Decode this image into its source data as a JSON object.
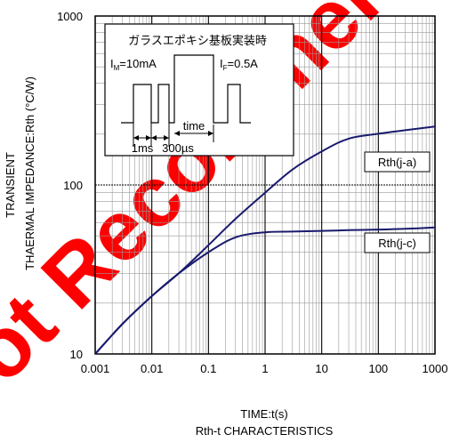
{
  "chart_data": {
    "type": "line",
    "x_scale": "log",
    "y_scale": "log",
    "xlim": [
      0.001,
      1000
    ],
    "ylim": [
      10,
      1000
    ],
    "x_ticks": [
      "0.001",
      "0.01",
      "0.1",
      "1",
      "10",
      "100",
      "1000"
    ],
    "y_ticks": [
      "10",
      "100",
      "1000"
    ],
    "xlabel": "TIME:t(s)",
    "ylabel_line1": "TRANSIENT",
    "ylabel_line2": "THAERMAL IMPEDANCE:Rth (°C/W)",
    "caption": "Rth-t CHARACTERISTICS",
    "grid": true,
    "series": [
      {
        "name": "Rth(j-a)",
        "x": [
          0.001,
          0.003,
          0.01,
          0.03,
          0.1,
          0.3,
          1,
          3,
          10,
          30,
          100,
          300,
          1000
        ],
        "y": [
          10,
          15,
          22,
          30,
          44,
          63,
          90,
          123,
          158,
          188,
          201,
          211,
          222
        ]
      },
      {
        "name": "Rth(j-c)",
        "x": [
          0.001,
          0.003,
          0.01,
          0.03,
          0.1,
          0.3,
          1,
          3,
          10,
          30,
          100,
          300,
          1000
        ],
        "y": [
          10,
          15,
          22,
          30,
          40,
          49,
          52.5,
          53,
          53.5,
          54,
          54.5,
          55,
          56
        ]
      }
    ]
  },
  "inset": {
    "title": "ガラスエポキシ基板実装時",
    "im_label": "I",
    "im_sub": "M",
    "im_value": "=10mA",
    "if_label": "I",
    "if_sub": "F",
    "if_value": "=0.5A",
    "time_label": "time",
    "dur1_label": "1ms",
    "dur2_label": "300µs"
  },
  "colors": {
    "curve": "#1a1a6e",
    "grid_major": "#000000",
    "grid_minor": "#9a9a9a",
    "watermark": "#ff0000"
  },
  "watermark_text": "Not Recommended"
}
